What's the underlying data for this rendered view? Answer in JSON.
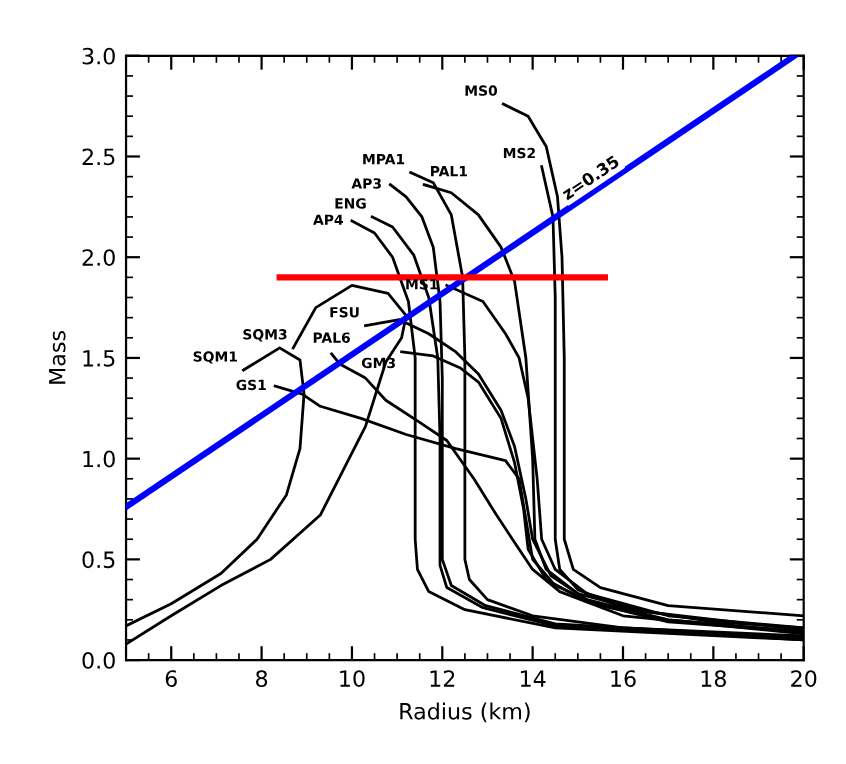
{
  "chart_data": {
    "type": "line",
    "xlabel": "Radius (km)",
    "ylabel": "Mass",
    "xlim": [
      5,
      20
    ],
    "ylim": [
      0,
      3
    ],
    "xticks": [
      6,
      8,
      10,
      12,
      14,
      16,
      18,
      20
    ],
    "yticks": [
      {
        "value": 0,
        "label": "0.0"
      },
      {
        "value": 0.5,
        "label": "0.5"
      },
      {
        "value": 1,
        "label": "1.0"
      },
      {
        "value": 1.5,
        "label": "1.5"
      },
      {
        "value": 2,
        "label": "2.0"
      },
      {
        "value": 2.5,
        "label": "2.5"
      },
      {
        "value": 3,
        "label": "3.0"
      }
    ],
    "grid": false,
    "annotations": [
      {
        "text": "z=0.35",
        "x": 15.3,
        "y": 2.39
      }
    ],
    "series": [
      {
        "name": "MS0",
        "color": "#000000",
        "x": [
          13.35,
          13.9,
          14.3,
          14.55,
          14.65,
          14.7,
          14.7,
          14.7,
          14.9,
          15.5,
          17,
          20
        ],
        "values": [
          2.76,
          2.7,
          2.55,
          2.3,
          2.0,
          1.5,
          1.0,
          0.6,
          0.45,
          0.36,
          0.27,
          0.22
        ]
      },
      {
        "name": "MS2",
        "color": "#000000",
        "x": [
          14.2,
          14.45,
          14.5,
          14.5,
          14.5,
          14.6,
          15.0,
          16,
          18,
          20
        ],
        "values": [
          2.45,
          2.2,
          1.8,
          1.2,
          0.6,
          0.45,
          0.35,
          0.26,
          0.19,
          0.16
        ]
      },
      {
        "name": "PAL1",
        "color": "#000000",
        "x": [
          11.6,
          12.2,
          12.8,
          13.3,
          13.6,
          13.85,
          14.0,
          14.05,
          14.3,
          15.0,
          16.5,
          20
        ],
        "values": [
          2.36,
          2.32,
          2.21,
          2.05,
          1.88,
          1.5,
          1.0,
          0.6,
          0.45,
          0.33,
          0.24,
          0.15
        ]
      },
      {
        "name": "MPA1",
        "color": "#000000",
        "x": [
          11.3,
          11.8,
          12.2,
          12.45,
          12.5,
          12.5,
          12.5,
          12.6,
          13.0,
          14.0,
          16,
          20
        ],
        "values": [
          2.42,
          2.37,
          2.21,
          1.9,
          1.5,
          1.0,
          0.5,
          0.4,
          0.3,
          0.22,
          0.16,
          0.12
        ]
      },
      {
        "name": "AP3",
        "color": "#000000",
        "x": [
          10.85,
          11.2,
          11.55,
          11.8,
          11.95,
          12.0,
          12.0,
          12.0,
          12.2,
          12.96,
          14.5,
          20
        ],
        "values": [
          2.36,
          2.3,
          2.2,
          2.05,
          1.78,
          1.4,
          0.9,
          0.5,
          0.37,
          0.27,
          0.18,
          0.11
        ]
      },
      {
        "name": "ENG",
        "color": "#000000",
        "x": [
          10.45,
          10.9,
          11.37,
          11.7,
          11.9,
          11.95,
          11.95,
          11.95,
          12.1,
          12.9,
          14.5,
          20
        ],
        "values": [
          2.2,
          2.15,
          2.01,
          1.8,
          1.5,
          1.1,
          0.7,
          0.47,
          0.36,
          0.26,
          0.17,
          0.1
        ]
      },
      {
        "name": "AP4",
        "color": "#000000",
        "x": [
          10.0,
          10.5,
          10.9,
          11.25,
          11.4,
          11.4,
          11.4,
          11.45,
          11.7,
          12.5,
          14.5,
          20
        ],
        "values": [
          2.18,
          2.12,
          2.0,
          1.78,
          1.5,
          1.0,
          0.6,
          0.45,
          0.34,
          0.25,
          0.16,
          0.1
        ]
      },
      {
        "name": "MS1",
        "color": "#000000",
        "x": [
          12.1,
          12.9,
          13.4,
          13.7,
          13.9,
          14.1,
          14.2,
          14.5,
          15.2,
          17,
          20
        ],
        "values": [
          1.86,
          1.78,
          1.62,
          1.5,
          1.3,
          0.9,
          0.6,
          0.45,
          0.33,
          0.22,
          0.16
        ]
      },
      {
        "name": "FSU",
        "color": "#000000",
        "x": [
          10.3,
          11.05,
          11.7,
          12.3,
          12.8,
          13.3,
          13.6,
          13.85,
          14.0,
          14.4,
          15.2,
          17,
          20
        ],
        "values": [
          1.66,
          1.69,
          1.62,
          1.53,
          1.42,
          1.24,
          1.06,
          0.8,
          0.6,
          0.42,
          0.3,
          0.2,
          0.14
        ]
      },
      {
        "name": "GM3",
        "color": "#000000",
        "x": [
          11.1,
          11.8,
          12.4,
          12.8,
          13.3,
          13.6,
          13.8,
          13.9,
          14.3,
          15.2,
          17,
          20
        ],
        "values": [
          1.53,
          1.51,
          1.45,
          1.38,
          1.2,
          0.98,
          0.75,
          0.55,
          0.4,
          0.29,
          0.19,
          0.14
        ]
      },
      {
        "name": "PAL6",
        "color": "#000000",
        "x": [
          9.55,
          9.73,
          10.3,
          10.75,
          11.5,
          12.1,
          12.7,
          13.2,
          13.7,
          14.0,
          14.6,
          16,
          20
        ],
        "values": [
          1.52,
          1.47,
          1.4,
          1.29,
          1.18,
          1.09,
          0.9,
          0.72,
          0.55,
          0.45,
          0.34,
          0.22,
          0.13
        ]
      },
      {
        "name": "GS1",
        "color": "#000000",
        "x": [
          8.3,
          8.9,
          9.3,
          10.2,
          11.2,
          12.3,
          13.4,
          13.7,
          13.85,
          14.0,
          14.5,
          15.5,
          17,
          20
        ],
        "values": [
          1.36,
          1.32,
          1.26,
          1.2,
          1.12,
          1.05,
          0.99,
          0.9,
          0.7,
          0.5,
          0.37,
          0.27,
          0.2,
          0.14
        ]
      },
      {
        "name": "SQM3",
        "color": "#000000",
        "x": [
          8.7,
          9.2,
          10.0,
          10.8,
          11.2,
          11.1,
          10.75,
          10.3,
          9.3,
          8.2,
          7.1,
          6.0,
          5.0
        ],
        "values": [
          1.55,
          1.75,
          1.86,
          1.82,
          1.71,
          1.6,
          1.48,
          1.16,
          0.72,
          0.5,
          0.37,
          0.22,
          0.08
        ]
      },
      {
        "name": "SQM1",
        "color": "#000000",
        "x": [
          7.6,
          8.4,
          8.85,
          8.94,
          8.85,
          8.55,
          7.9,
          7.1,
          6.0,
          5.0
        ],
        "values": [
          1.44,
          1.55,
          1.49,
          1.32,
          1.05,
          0.82,
          0.6,
          0.43,
          0.28,
          0.17
        ]
      },
      {
        "color": "#0000ff",
        "x": [
          5,
          19.8
        ],
        "values": [
          0.76,
          3.0
        ]
      },
      {
        "color": "#ff0000",
        "x": [
          8.4,
          15.6
        ],
        "values": [
          1.9,
          1.9
        ]
      }
    ]
  }
}
